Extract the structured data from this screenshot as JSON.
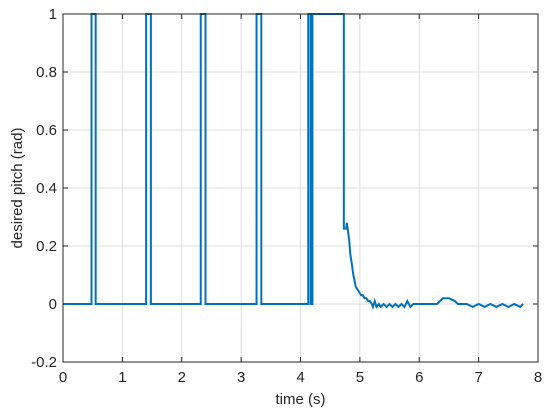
{
  "chart_data": {
    "type": "line",
    "title": "",
    "xlabel": "time (s)",
    "ylabel": "desired pitch (rad)",
    "xlim": [
      0,
      8
    ],
    "ylim": [
      -0.2,
      1
    ],
    "xticks": [
      0,
      1,
      2,
      3,
      4,
      5,
      6,
      7,
      8
    ],
    "yticks": [
      -0.2,
      0,
      0.2,
      0.4,
      0.6,
      0.8,
      1
    ],
    "xtick_labels": [
      "0",
      "1",
      "2",
      "3",
      "4",
      "5",
      "6",
      "7",
      "8"
    ],
    "ytick_labels": [
      "-0.2",
      "0",
      "0.2",
      "0.4",
      "0.6",
      "0.8",
      "1"
    ],
    "grid": true,
    "legend": "none",
    "series": [
      {
        "color": "#0072bd",
        "x": [
          0,
          0.48,
          0.48,
          0.55,
          0.55,
          1.4,
          1.4,
          1.48,
          1.48,
          2.32,
          2.32,
          2.4,
          2.4,
          3.26,
          3.26,
          3.34,
          3.34,
          4.13,
          4.13,
          4.17,
          4.17,
          4.2,
          4.2,
          4.73,
          4.73,
          4.77,
          4.78,
          4.82,
          4.84,
          4.87,
          4.89,
          4.91,
          4.93,
          4.96,
          4.99,
          5.02,
          5.05,
          5.08,
          5.11,
          5.14,
          5.17,
          5.2,
          5.22,
          5.25,
          5.28,
          5.32,
          5.35,
          5.4,
          5.45,
          5.5,
          5.55,
          5.6,
          5.65,
          5.7,
          5.75,
          5.8,
          5.85,
          5.9,
          6.0,
          6.1,
          6.2,
          6.3,
          6.4,
          6.5,
          6.6,
          6.65,
          6.7,
          6.8,
          6.9,
          7.0,
          7.1,
          7.2,
          7.3,
          7.4,
          7.5,
          7.6,
          7.7,
          7.75
        ],
        "y": [
          0,
          0,
          1,
          1,
          0,
          0,
          1,
          1,
          0,
          0,
          1,
          1,
          0,
          0,
          1,
          1,
          0,
          0,
          1,
          1,
          0,
          0,
          1,
          1,
          0.26,
          0.26,
          0.28,
          0.22,
          0.17,
          0.13,
          0.1,
          0.08,
          0.06,
          0.05,
          0.04,
          0.03,
          0.03,
          0.02,
          0.02,
          0.01,
          0.01,
          0.0,
          -0.01,
          0.01,
          -0.01,
          0.0,
          -0.01,
          0.0,
          -0.01,
          0.0,
          -0.01,
          0.0,
          -0.01,
          0.0,
          -0.01,
          0.01,
          -0.01,
          0.0,
          0.0,
          0.0,
          0.0,
          0.0,
          0.02,
          0.02,
          0.01,
          0.0,
          0.0,
          0.0,
          -0.01,
          0.0,
          -0.01,
          0.0,
          -0.01,
          0.0,
          -0.01,
          0.0,
          -0.01,
          0.0
        ]
      }
    ]
  }
}
